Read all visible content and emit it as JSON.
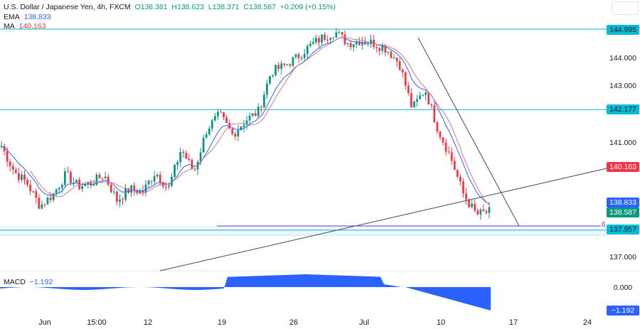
{
  "header": {
    "symbol": "U.S. Dollar / Japanese Yen, 4h, FXCM",
    "open": "O138.381",
    "high": "H138.623",
    "low": "L138.371",
    "close": "C138.587",
    "change": "+0.209 (+0.15%)"
  },
  "indicators": {
    "ema_label": "EMA",
    "ema_value": "138.833",
    "ma_label": "MA",
    "ma_value": "140.163",
    "macd_label": "MACD",
    "macd_value": "−1.192"
  },
  "price_axis": [
    "144.000",
    "143.000",
    "141.000",
    "137.000"
  ],
  "price_tags": {
    "level1": "144.995",
    "level2": "142.177",
    "ma": "140.163",
    "ema": "138.833",
    "last": "138.587",
    "level3": "137.957"
  },
  "macd_axis": {
    "zero": "0.000",
    "macd_tag": "−1.192"
  },
  "drawing_label": "6",
  "time_axis": [
    "Jun",
    "15:00",
    "12",
    "19",
    "26",
    "Jul",
    "10",
    "17",
    "24"
  ],
  "colors": {
    "up": "#089981",
    "down": "#f23645",
    "ema": "#2962ff",
    "ma": "#f23645",
    "level": "#00bcd4",
    "macd": "#2962ff"
  },
  "chart_data": {
    "type": "candlestick",
    "symbol": "USDJPY",
    "timeframe": "4h",
    "approx_close_path": [
      140.9,
      140.0,
      139.6,
      138.8,
      139.2,
      139.9,
      139.5,
      139.6,
      139.9,
      139.0,
      139.4,
      139.3,
      140.0,
      139.4,
      140.8,
      140.0,
      141.5,
      142.0,
      141.3,
      141.8,
      142.1,
      143.5,
      143.7,
      144.0,
      144.4,
      144.7,
      144.9,
      144.5,
      144.6,
      144.5,
      144.3,
      143.8,
      142.2,
      142.9,
      141.5,
      140.5,
      139.2,
      138.5,
      138.6
    ],
    "horizontal_levels": [
      144.995,
      142.177,
      137.957
    ]
  }
}
